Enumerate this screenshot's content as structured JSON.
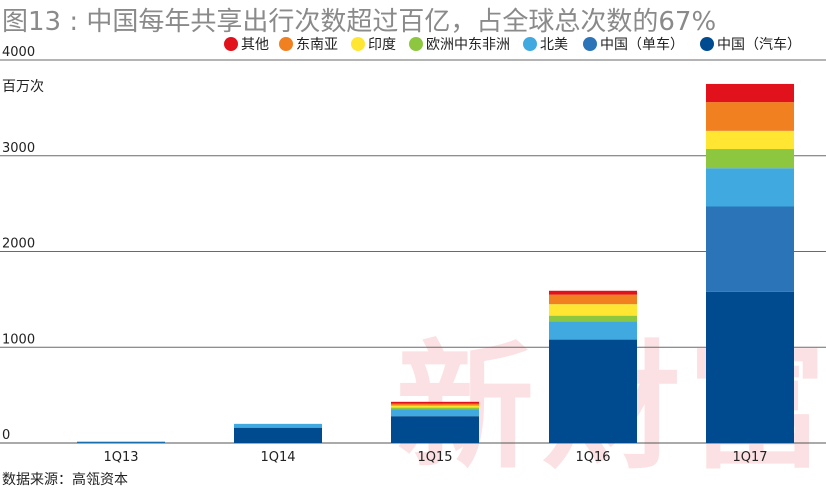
{
  "chart_data": {
    "type": "bar",
    "stacked": true,
    "title": "图13 : 中国每年共享出行次数超过百亿，占全球总次数的67%",
    "ylabel": "百万次",
    "ylim": [
      0,
      4000
    ],
    "yticks": [
      0,
      1000,
      2000,
      3000,
      4000
    ],
    "grid": true,
    "legend_position": "top-right",
    "categories": [
      "1Q13",
      "1Q14",
      "1Q15",
      "1Q16",
      "1Q17"
    ],
    "series": [
      {
        "name": "中国（汽车）",
        "color": "#004a8f",
        "values": [
          10,
          160,
          280,
          1080,
          1580
        ]
      },
      {
        "name": "中国（单车）",
        "color": "#2b74b8",
        "values": [
          0,
          0,
          0,
          0,
          890
        ]
      },
      {
        "name": "北美",
        "color": "#40a9e0",
        "values": [
          5,
          40,
          70,
          190,
          400
        ]
      },
      {
        "name": "欧洲中东非洲",
        "color": "#8dc63f",
        "values": [
          0,
          0,
          20,
          60,
          200
        ]
      },
      {
        "name": "印度",
        "color": "#ffe633",
        "values": [
          0,
          0,
          20,
          120,
          190
        ]
      },
      {
        "name": "东南亚",
        "color": "#f08020",
        "values": [
          0,
          0,
          20,
          100,
          300
        ]
      },
      {
        "name": "其他",
        "color": "#e2121d",
        "values": [
          0,
          0,
          20,
          40,
          190
        ]
      }
    ],
    "source": "数据来源：高瓴资本",
    "watermark": "新財富"
  }
}
